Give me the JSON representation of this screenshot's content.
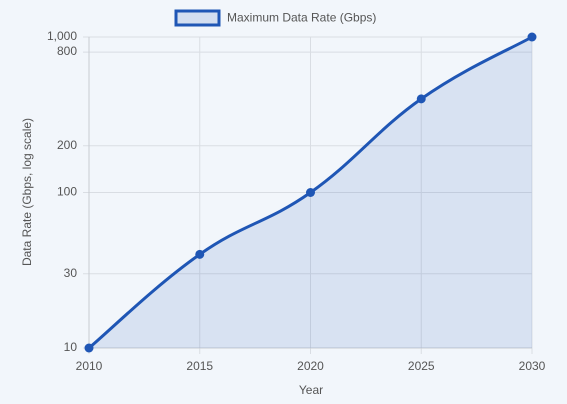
{
  "chart_data": {
    "type": "line",
    "x_label": "Year",
    "y_label": "Data Rate (Gbps, log scale)",
    "x": [
      2010,
      2015,
      2020,
      2025,
      2030
    ],
    "series": [
      {
        "name": "Maximum Data Rate (Gbps)",
        "color": "#1f56b5",
        "values": [
          10,
          40,
          100,
          400,
          1000
        ]
      }
    ],
    "xlim": [
      2010,
      2030
    ],
    "xticks": [
      2010,
      2015,
      2020,
      2025,
      2030
    ],
    "ylim": [
      10,
      1000
    ],
    "yticks": [
      10,
      30,
      100,
      200,
      800,
      {
        "value": 1000,
        "label": "1,000"
      }
    ],
    "y_scale": "log",
    "grid": true,
    "fill": true,
    "legend": "top"
  }
}
